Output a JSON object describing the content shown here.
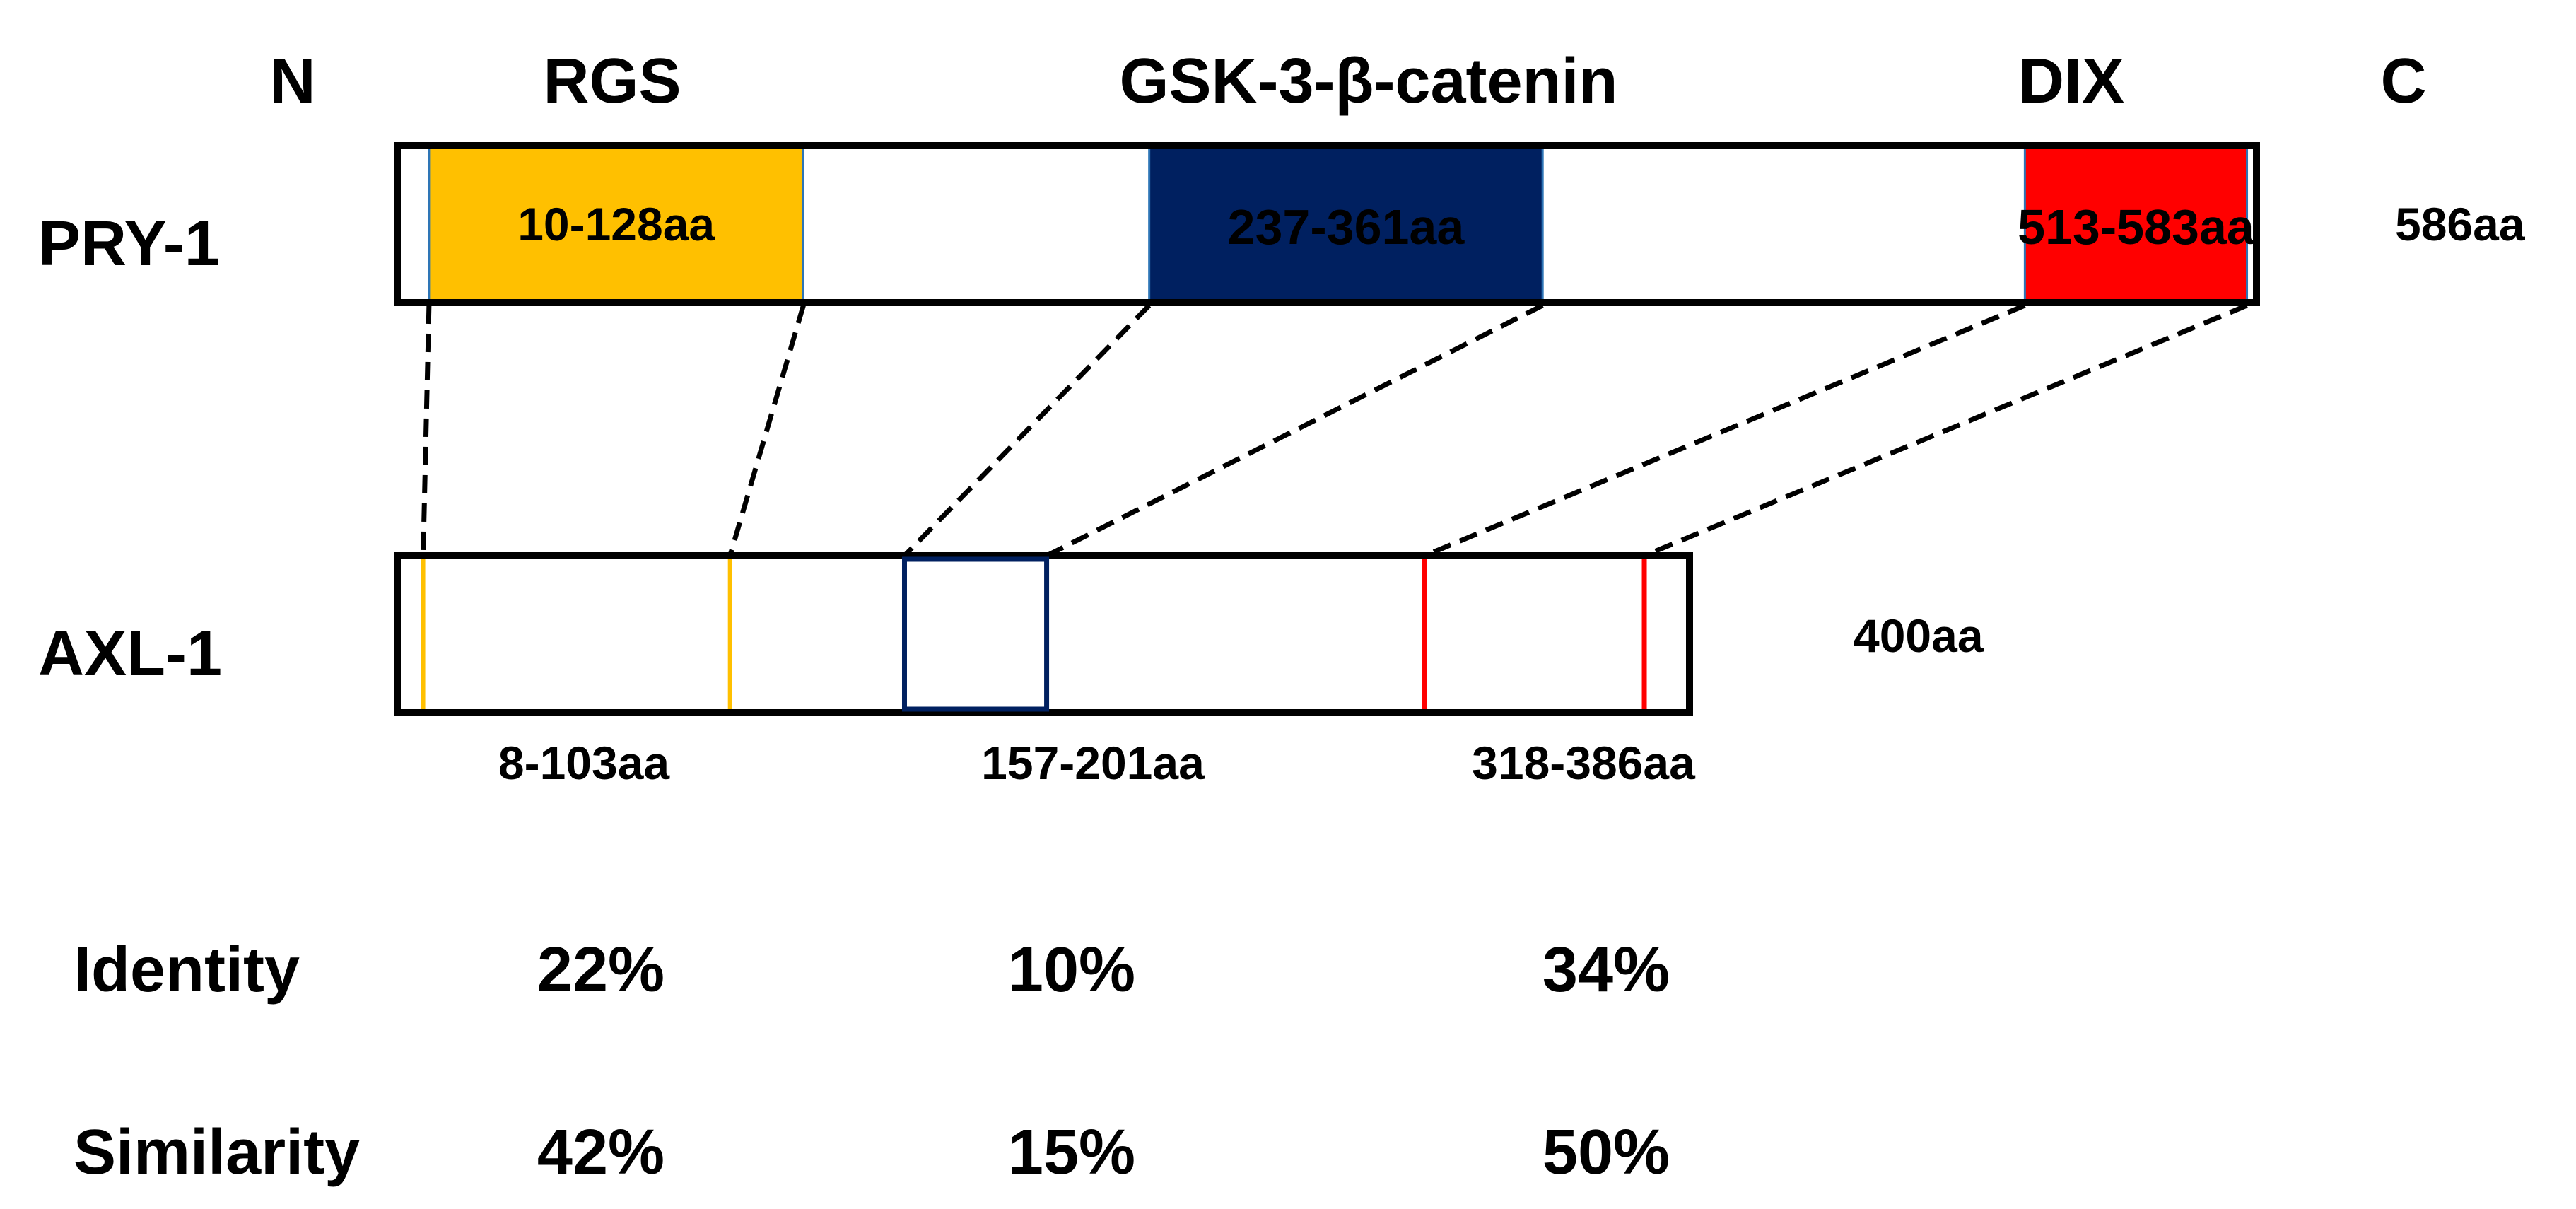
{
  "header": {
    "n_terminus": "N",
    "c_terminus": "C",
    "domain_names": [
      "RGS",
      "GSK-3-β-catenin",
      "DIX"
    ]
  },
  "proteins": {
    "pry1": {
      "name": "PRY-1",
      "length_label": "586aa",
      "length": 586,
      "domains": [
        {
          "range_label": "10-128aa",
          "start": 10,
          "end": 128,
          "color": "#FFC000",
          "text_color": "#000000"
        },
        {
          "range_label": "237-361aa",
          "start": 237,
          "end": 361,
          "color": "#002060",
          "text_color": "#FFFFFF"
        },
        {
          "range_label": "513-583aa",
          "start": 513,
          "end": 583,
          "color": "#FF0000",
          "text_color": "#000000"
        }
      ]
    },
    "axl1": {
      "name": "AXL-1",
      "length_label": "400aa",
      "length": 400,
      "domains": [
        {
          "range_label": "8-103aa",
          "start": 8,
          "end": 103,
          "color": "#FFC000"
        },
        {
          "range_label": "157-201aa",
          "start": 157,
          "end": 201,
          "color": "#002060"
        },
        {
          "range_label": "318-386aa",
          "start": 318,
          "end": 386,
          "color": "#FF0000"
        }
      ]
    }
  },
  "stats": {
    "identity_label": "Identity",
    "identity": [
      "22%",
      "10%",
      "34%"
    ],
    "similarity_label": "Similarity",
    "similarity": [
      "42%",
      "15%",
      "50%"
    ]
  }
}
